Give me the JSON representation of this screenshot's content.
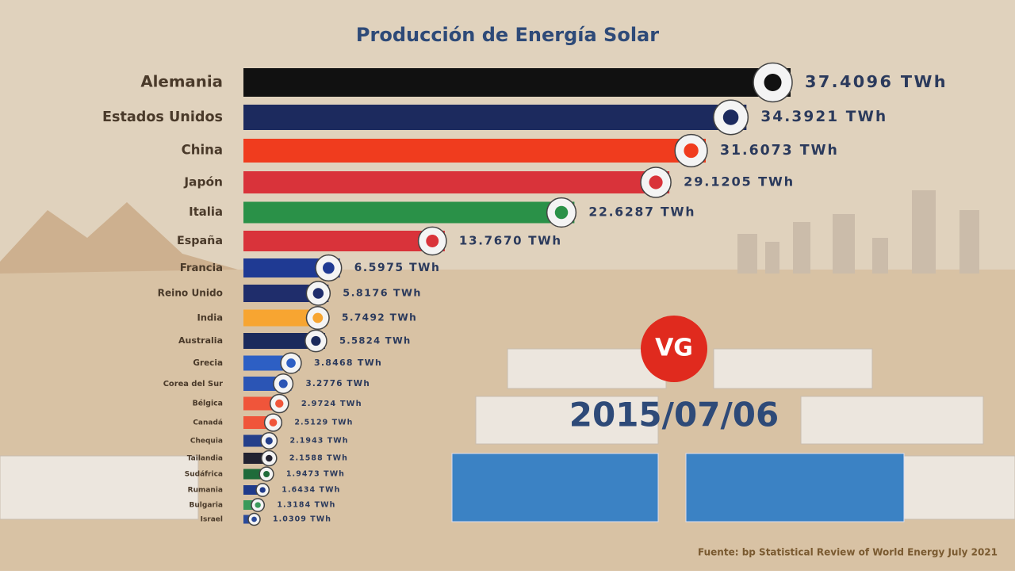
{
  "chart_data": {
    "type": "bar",
    "orientation": "horizontal",
    "title": "Producción de Energía Solar",
    "date": "2015/07/06",
    "logo": "VG",
    "source": "Fuente: bp Statistical Review of World Energy July 2021",
    "categories": [
      "Alemania",
      "Estados Unidos",
      "China",
      "Japón",
      "Italia",
      "España",
      "Francia",
      "Reino Unido",
      "India",
      "Australia",
      "Grecia",
      "Corea del Sur",
      "Bélgica",
      "Canadá",
      "Chequia",
      "Tailandia",
      "Sudáfrica",
      "Rumania",
      "Bulgaria",
      "Israel"
    ],
    "values": [
      37.4096,
      34.3921,
      31.6073,
      29.1205,
      22.6287,
      13.767,
      6.5975,
      5.8176,
      5.7492,
      5.5824,
      3.8468,
      3.2776,
      2.9724,
      2.5129,
      2.1943,
      2.1588,
      1.9473,
      1.6434,
      1.3184,
      1.0309
    ],
    "value_labels": [
      "37.4096 TWh",
      "34.3921 TWh",
      "31.6073 TWh",
      "29.1205 TWh",
      "22.6287 TWh",
      "13.7670 TWh",
      "6.5975 TWh",
      "5.8176 TWh",
      "5.7492 TWh",
      "5.5824 TWh",
      "3.8468 TWh",
      "3.2776 TWh",
      "2.9724 TWh",
      "2.5129 TWh",
      "2.1943 TWh",
      "2.1588 TWh",
      "1.9473 TWh",
      "1.6434 TWh",
      "1.3184 TWh",
      "1.0309 TWh"
    ],
    "colors": [
      "#111111",
      "#1c2a5e",
      "#f03c1e",
      "#d9333a",
      "#2a9148",
      "#d9333a",
      "#1f3a93",
      "#1f2d6b",
      "#f7a531",
      "#1b2a5c",
      "#2d5fc4",
      "#2b55b5",
      "#f0553a",
      "#f0553a",
      "#243f8a",
      "#222230",
      "#1f6b3a",
      "#1f3a8a",
      "#3a9a5a",
      "#2a4a9a"
    ]
  }
}
